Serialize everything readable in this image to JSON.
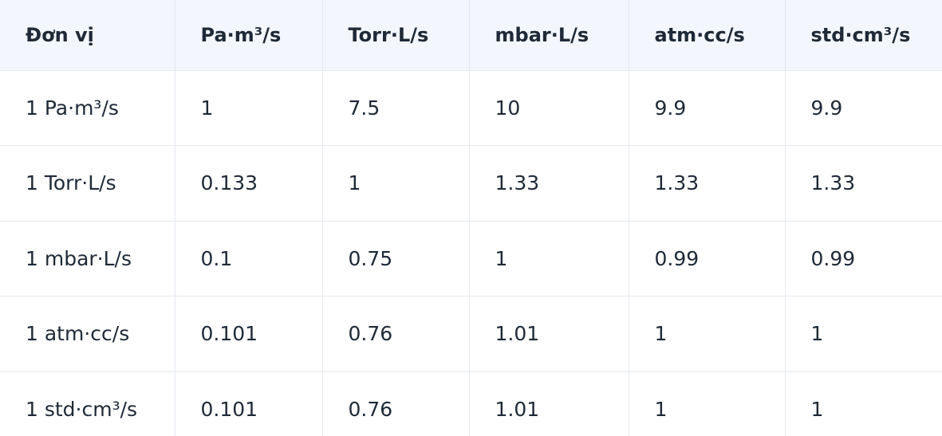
{
  "table": {
    "headers": [
      "Đơn vị",
      "Pa·m³/s",
      "Torr·L/s",
      "mbar·L/s",
      "atm·cc/s",
      "std·cm³/s"
    ],
    "rows": [
      [
        "1 Pa·m³/s",
        "1",
        "7.5",
        "10",
        "9.9",
        "9.9"
      ],
      [
        "1 Torr·L/s",
        "0.133",
        "1",
        "1.33",
        "1.33",
        "1.33"
      ],
      [
        "1 mbar·L/s",
        "0.1",
        "0.75",
        "1",
        "0.99",
        "0.99"
      ],
      [
        "1 atm·cc/s",
        "0.101",
        "0.76",
        "1.01",
        "1",
        "1"
      ],
      [
        "1 std·cm³/s",
        "0.101",
        "0.76",
        "1.01",
        "1",
        "1"
      ]
    ]
  },
  "colors": {
    "header_background": "#f3f6fd",
    "border": "#e6e9f0",
    "text": "#1f2937"
  }
}
